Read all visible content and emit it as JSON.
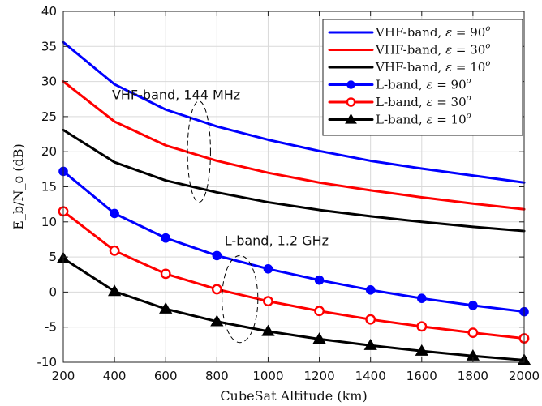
{
  "chart_data": {
    "type": "line",
    "title": "",
    "xlabel": "CubeSat Altitude (km)",
    "ylabel": "E_b/N_o (dB)",
    "xlim": [
      200,
      2000
    ],
    "ylim": [
      -10,
      40
    ],
    "xticks": [
      200,
      400,
      600,
      800,
      1000,
      1200,
      1400,
      1600,
      1800,
      2000
    ],
    "yticks": [
      -10,
      -5,
      0,
      5,
      10,
      15,
      20,
      25,
      30,
      35,
      40
    ],
    "grid": true,
    "legend_position": "top-right",
    "x": [
      200,
      400,
      600,
      800,
      1000,
      1200,
      1400,
      1600,
      1800,
      2000
    ],
    "series": [
      {
        "name": "VHF-band, ε = 90°",
        "name_prefix": "VHF-band, ",
        "epsilon_symbol": "ε",
        "equals": " = ",
        "angle_value": "90",
        "degree_mark": "o",
        "color": "#0000ff",
        "marker": "none",
        "values": [
          35.6,
          29.6,
          26.0,
          23.6,
          21.7,
          20.1,
          18.7,
          17.6,
          16.6,
          15.6
        ]
      },
      {
        "name": "VHF-band, ε = 30°",
        "name_prefix": "VHF-band, ",
        "epsilon_symbol": "ε",
        "equals": " = ",
        "angle_value": "30",
        "degree_mark": "o",
        "color": "#ff0000",
        "marker": "none",
        "values": [
          30.0,
          24.3,
          20.9,
          18.7,
          17.0,
          15.6,
          14.5,
          13.5,
          12.6,
          11.8
        ]
      },
      {
        "name": "VHF-band, ε = 10°",
        "name_prefix": "VHF-band, ",
        "epsilon_symbol": "ε",
        "equals": " = ",
        "angle_value": "10",
        "degree_mark": "o",
        "color": "#000000",
        "marker": "none",
        "values": [
          23.1,
          18.5,
          15.9,
          14.2,
          12.8,
          11.7,
          10.8,
          10.0,
          9.3,
          8.7
        ]
      },
      {
        "name": "L-band, ε = 90°",
        "name_prefix": "L-band, ",
        "epsilon_symbol": "ε",
        "equals": " = ",
        "angle_value": "90",
        "degree_mark": "o",
        "color": "#0000ff",
        "marker": "filled-circle",
        "values": [
          17.2,
          11.2,
          7.7,
          5.2,
          3.3,
          1.7,
          0.3,
          -0.9,
          -1.9,
          -2.8
        ]
      },
      {
        "name": "L-band, ε = 30°",
        "name_prefix": "L-band, ",
        "epsilon_symbol": "ε",
        "equals": " = ",
        "angle_value": "30",
        "degree_mark": "o",
        "color": "#ff0000",
        "marker": "open-circle",
        "values": [
          11.5,
          5.9,
          2.6,
          0.4,
          -1.3,
          -2.7,
          -3.9,
          -4.9,
          -5.8,
          -6.6
        ]
      },
      {
        "name": "L-band, ε = 10°",
        "name_prefix": "L-band, ",
        "epsilon_symbol": "ε",
        "equals": " = ",
        "angle_value": "10",
        "degree_mark": "o",
        "color": "#000000",
        "marker": "filled-triangle",
        "values": [
          4.8,
          0.1,
          -2.4,
          -4.2,
          -5.6,
          -6.7,
          -7.6,
          -8.4,
          -9.1,
          -9.7
        ]
      }
    ],
    "annotations": [
      {
        "text": "VHF-band, 144 MHz",
        "ellipse_center": [
          730,
          20
        ],
        "ellipse_radius": [
          45,
          7.2
        ]
      },
      {
        "text": "L-band, 1.2 GHz",
        "ellipse_center": [
          890,
          -1
        ],
        "ellipse_radius": [
          70,
          6.2
        ]
      }
    ],
    "colors": {
      "blue": "#0000ff",
      "red": "#ff0000",
      "black": "#000000",
      "grid": "#d9d9d9",
      "axis": "#222222"
    }
  }
}
